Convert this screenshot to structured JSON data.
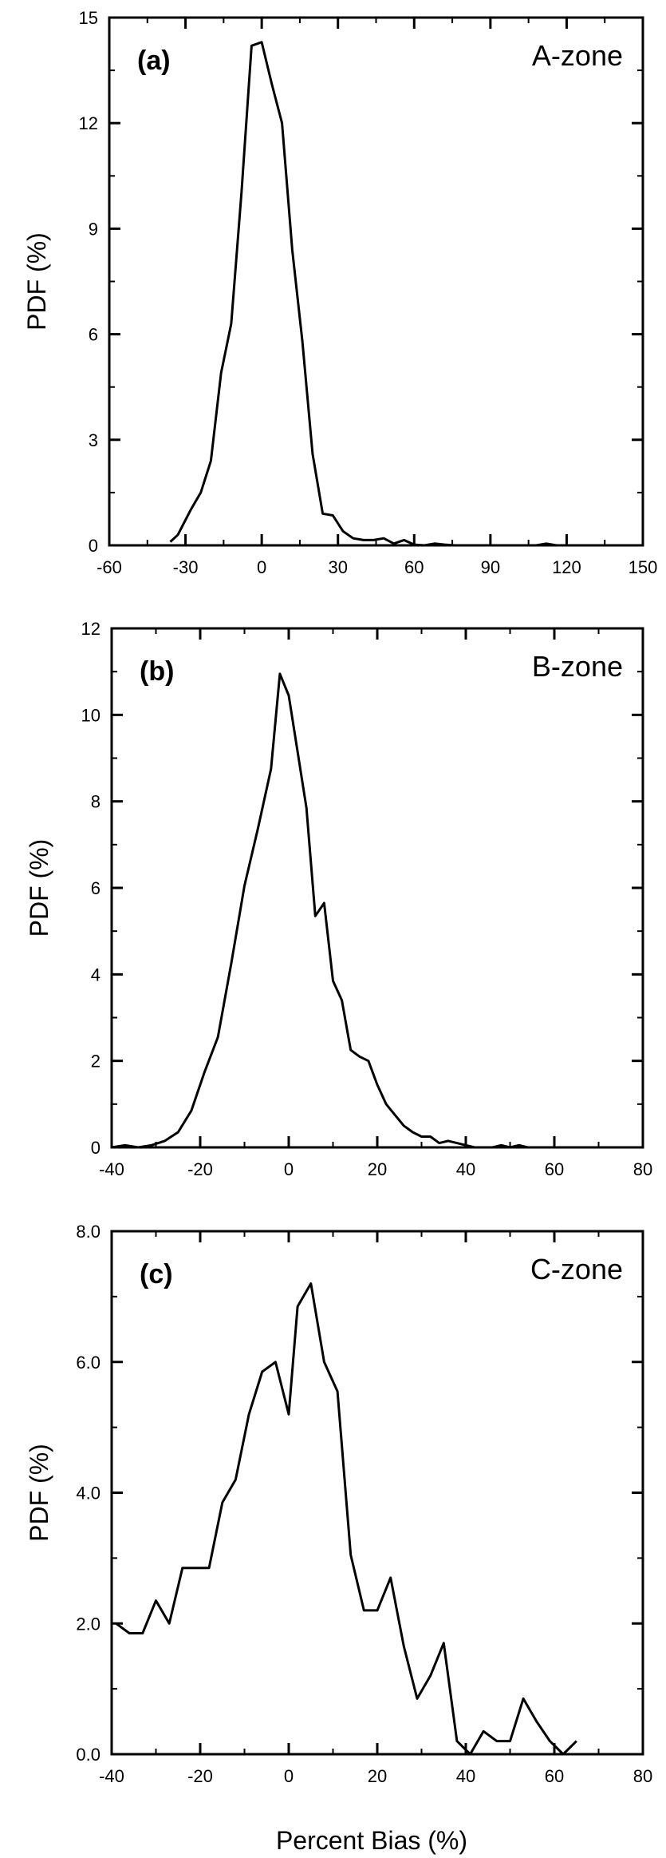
{
  "figure": {
    "xlabel": "Percent Bias  (%)"
  },
  "chart_data": [
    {
      "type": "line",
      "panel_label": "(a)",
      "zone_label": "A-zone",
      "xlabel": "",
      "ylabel": "PDF (%)",
      "xlim": [
        -60,
        150
      ],
      "ylim": [
        0,
        15
      ],
      "xticks": [
        -60,
        -30,
        0,
        30,
        60,
        90,
        120,
        150
      ],
      "yticks": [
        0,
        3,
        6,
        9,
        12,
        15
      ],
      "ytick_labels": [
        "0",
        "3",
        "6",
        "9",
        "12",
        "15"
      ],
      "grid": false,
      "series": [
        {
          "x": [
            -36,
            -33,
            -28,
            -24,
            -20,
            -16,
            -12,
            -8,
            -4,
            0,
            4,
            8,
            12,
            16,
            20,
            24,
            28,
            32,
            36,
            40,
            44,
            48,
            52,
            56,
            60,
            64,
            68,
            72,
            76,
            80,
            84,
            88,
            92,
            96,
            100,
            104,
            108,
            112,
            116,
            120,
            124
          ],
          "y": [
            0.1,
            0.3,
            1.0,
            1.5,
            2.4,
            4.9,
            6.3,
            10.0,
            14.2,
            14.3,
            13.1,
            12.0,
            8.4,
            5.8,
            2.6,
            0.9,
            0.85,
            0.4,
            0.2,
            0.15,
            0.15,
            0.2,
            0.05,
            0.15,
            0.02,
            0.0,
            0.05,
            0.02,
            0.0,
            0.0,
            0.0,
            0.0,
            0.0,
            0.0,
            0.0,
            0.0,
            0.0,
            0.05,
            0.0,
            0.0,
            0.0
          ]
        }
      ]
    },
    {
      "type": "line",
      "panel_label": "(b)",
      "zone_label": "B-zone",
      "xlabel": "",
      "ylabel": "PDF (%)",
      "xlim": [
        -40,
        80
      ],
      "ylim": [
        0,
        12
      ],
      "xticks": [
        -40,
        -20,
        0,
        20,
        40,
        60,
        80
      ],
      "yticks": [
        0,
        2,
        4,
        6,
        8,
        10,
        12
      ],
      "ytick_labels": [
        "0",
        "2",
        "4",
        "6",
        "8",
        "10",
        "12"
      ],
      "grid": false,
      "series": [
        {
          "x": [
            -40,
            -37,
            -34,
            -31,
            -28,
            -25,
            -22,
            -19,
            -16,
            -13,
            -10,
            -7,
            -4,
            -2,
            0,
            2,
            4,
            6,
            8,
            10,
            12,
            14,
            16,
            18,
            20,
            22,
            24,
            26,
            28,
            30,
            32,
            34,
            36,
            38,
            40,
            42,
            44,
            46,
            48,
            50,
            52,
            54,
            56,
            58,
            60,
            62,
            64,
            66,
            68,
            70
          ],
          "y": [
            0.0,
            0.05,
            0.0,
            0.05,
            0.15,
            0.35,
            0.85,
            1.75,
            2.55,
            4.25,
            6.05,
            7.35,
            8.75,
            10.95,
            10.45,
            9.15,
            7.85,
            5.35,
            5.65,
            3.85,
            3.4,
            2.25,
            2.1,
            2.0,
            1.45,
            1.0,
            0.75,
            0.5,
            0.35,
            0.25,
            0.25,
            0.1,
            0.15,
            0.1,
            0.05,
            0.0,
            0.0,
            0.0,
            0.05,
            0.0,
            0.05,
            0.0,
            0.0,
            0.0,
            0.0,
            0.0,
            0.0,
            0.0,
            0.0,
            0.0
          ]
        }
      ]
    },
    {
      "type": "line",
      "panel_label": "(c)",
      "zone_label": "C-zone",
      "xlabel": "Percent Bias  (%)",
      "ylabel": "PDF (%)",
      "xlim": [
        -40,
        80
      ],
      "ylim": [
        0,
        8
      ],
      "xticks": [
        -40,
        -20,
        0,
        20,
        40,
        60,
        80
      ],
      "yticks": [
        0,
        2,
        4,
        6,
        8
      ],
      "ytick_labels": [
        "0.0",
        "2.0",
        "4.0",
        "6.0",
        "8.0"
      ],
      "grid": false,
      "series": [
        {
          "x": [
            -39,
            -36,
            -33,
            -30,
            -27,
            -24,
            -21,
            -18,
            -15,
            -12,
            -9,
            -6,
            -3,
            0,
            2,
            5,
            8,
            11,
            14,
            17,
            20,
            23,
            26,
            29,
            32,
            35,
            38,
            41,
            44,
            47,
            50,
            53,
            56,
            59,
            62,
            65
          ],
          "y": [
            2.0,
            1.85,
            1.85,
            2.35,
            2.0,
            2.85,
            2.85,
            2.85,
            3.85,
            4.2,
            5.2,
            5.85,
            6.0,
            5.2,
            6.85,
            7.2,
            6.0,
            5.55,
            3.05,
            2.2,
            2.2,
            2.7,
            1.65,
            0.85,
            1.2,
            1.7,
            0.2,
            0.0,
            0.35,
            0.2,
            0.2,
            0.85,
            0.5,
            0.2,
            0.0,
            0.2
          ]
        }
      ]
    }
  ]
}
